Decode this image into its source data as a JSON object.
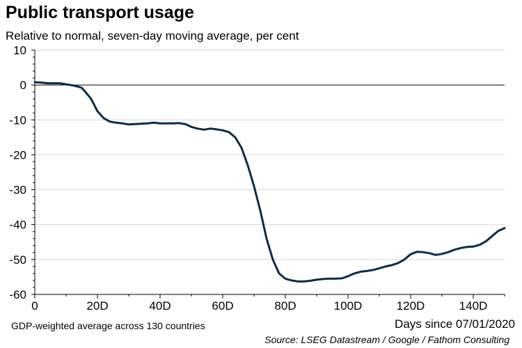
{
  "chart_data": {
    "type": "line",
    "title": "Public transport usage",
    "subtitle": "Relative to normal, seven-day moving average, per cent",
    "xlabel": "Days since 07/01/2020",
    "ylabel": "",
    "note": "GDP-weighted average across 130 countries",
    "source": "Source: LSEG Datastream / Google / Fathom Consulting",
    "xlim": [
      0,
      150
    ],
    "ylim": [
      -60,
      10
    ],
    "x_ticks": [
      0,
      20,
      40,
      60,
      80,
      100,
      120,
      140
    ],
    "x_tick_labels": [
      "0",
      "20D",
      "40D",
      "60D",
      "80D",
      "100D",
      "120D",
      "140D"
    ],
    "y_ticks": [
      10,
      0,
      -10,
      -20,
      -30,
      -40,
      -50,
      -60
    ],
    "y_tick_labels": [
      "10",
      "0",
      "-10",
      "-20",
      "-30",
      "-40",
      "-50",
      "-60"
    ],
    "grid": true,
    "line_color": "#0d2b45",
    "series": [
      {
        "x": [
          0,
          2,
          4,
          6,
          8,
          10,
          12,
          14,
          15,
          16,
          18,
          20,
          22,
          24,
          26,
          28,
          30,
          32,
          34,
          36,
          38,
          40,
          42,
          44,
          46,
          48,
          50,
          52,
          54,
          56,
          58,
          60,
          62,
          64,
          66,
          68,
          70,
          72,
          74,
          76,
          78,
          80,
          82,
          84,
          86,
          88,
          90,
          92,
          94,
          96,
          98,
          100,
          102,
          104,
          106,
          108,
          110,
          112,
          114,
          116,
          118,
          120,
          122,
          124,
          126,
          128,
          130,
          132,
          134,
          136,
          138,
          140,
          142,
          144,
          146,
          148,
          150
        ],
        "y": [
          0.8,
          0.7,
          0.5,
          0.5,
          0.5,
          0.2,
          -0.1,
          -0.5,
          -0.8,
          -1.8,
          -4.0,
          -7.5,
          -9.5,
          -10.5,
          -10.8,
          -11.0,
          -11.3,
          -11.2,
          -11.1,
          -11.0,
          -10.8,
          -11.0,
          -11.0,
          -11.0,
          -10.9,
          -11.2,
          -12.0,
          -12.5,
          -12.8,
          -12.5,
          -12.7,
          -13.0,
          -13.5,
          -15.0,
          -18.0,
          -23.0,
          -29.0,
          -36.0,
          -44.0,
          -50.0,
          -54.0,
          -55.5,
          -56.0,
          -56.3,
          -56.3,
          -56.1,
          -55.8,
          -55.6,
          -55.5,
          -55.5,
          -55.4,
          -54.8,
          -54.0,
          -53.5,
          -53.3,
          -53.0,
          -52.5,
          -52.0,
          -51.6,
          -51.0,
          -50.0,
          -48.5,
          -47.8,
          -47.9,
          -48.2,
          -48.7,
          -48.4,
          -47.9,
          -47.2,
          -46.7,
          -46.4,
          -46.3,
          -45.8,
          -44.8,
          -43.3,
          -41.8,
          -41.0
        ]
      }
    ]
  }
}
